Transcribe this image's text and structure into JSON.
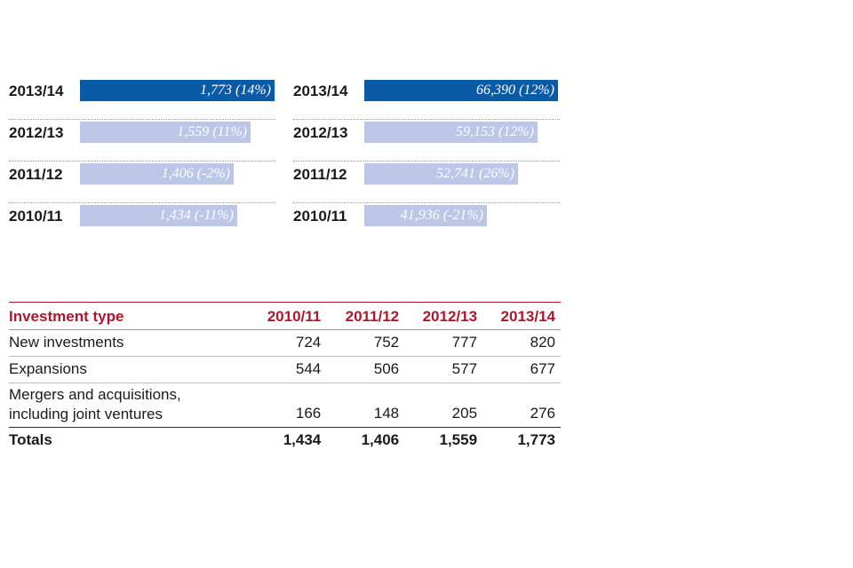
{
  "chart_data": [
    {
      "type": "bar",
      "orientation": "horizontal",
      "categories": [
        "2013/14",
        "2012/13",
        "2011/12",
        "2010/11"
      ],
      "values": [
        1773,
        1559,
        1406,
        1434
      ],
      "value_labels": [
        "1,773 (14%)",
        "1,559 (11%)",
        "1,406 (-2%)",
        "1,434 (-11%)"
      ],
      "highlight_index": 0,
      "xlim": [
        0,
        1800
      ],
      "colors": {
        "highlight": "#0b5aa5",
        "default": "#bcc6e6"
      }
    },
    {
      "type": "bar",
      "orientation": "horizontal",
      "categories": [
        "2013/14",
        "2012/13",
        "2011/12",
        "2010/11"
      ],
      "values": [
        66390,
        59153,
        52741,
        41936
      ],
      "value_labels": [
        "66,390 (12%)",
        "59,153 (12%)",
        "52,741 (26%)",
        "41,936 (-21%)"
      ],
      "highlight_index": 0,
      "xlim": [
        0,
        67500
      ],
      "colors": {
        "highlight": "#0b5aa5",
        "default": "#bcc6e6"
      }
    },
    {
      "type": "table",
      "columns": [
        "Investment type",
        "2010/11",
        "2011/12",
        "2012/13",
        "2013/14"
      ],
      "rows": [
        {
          "label": [
            "New investments"
          ],
          "values": [
            "724",
            "752",
            "777",
            "820"
          ]
        },
        {
          "label": [
            "Expansions"
          ],
          "values": [
            "544",
            "506",
            "577",
            "677"
          ]
        },
        {
          "label": [
            "Mergers and acquisitions,",
            "including joint ventures"
          ],
          "values": [
            "166",
            "148",
            "205",
            "276"
          ]
        }
      ],
      "totals": {
        "label": "Totals",
        "values": [
          "1,434",
          "1,406",
          "1,559",
          "1,773"
        ]
      },
      "colors": {
        "header": "#b0162e"
      }
    }
  ]
}
